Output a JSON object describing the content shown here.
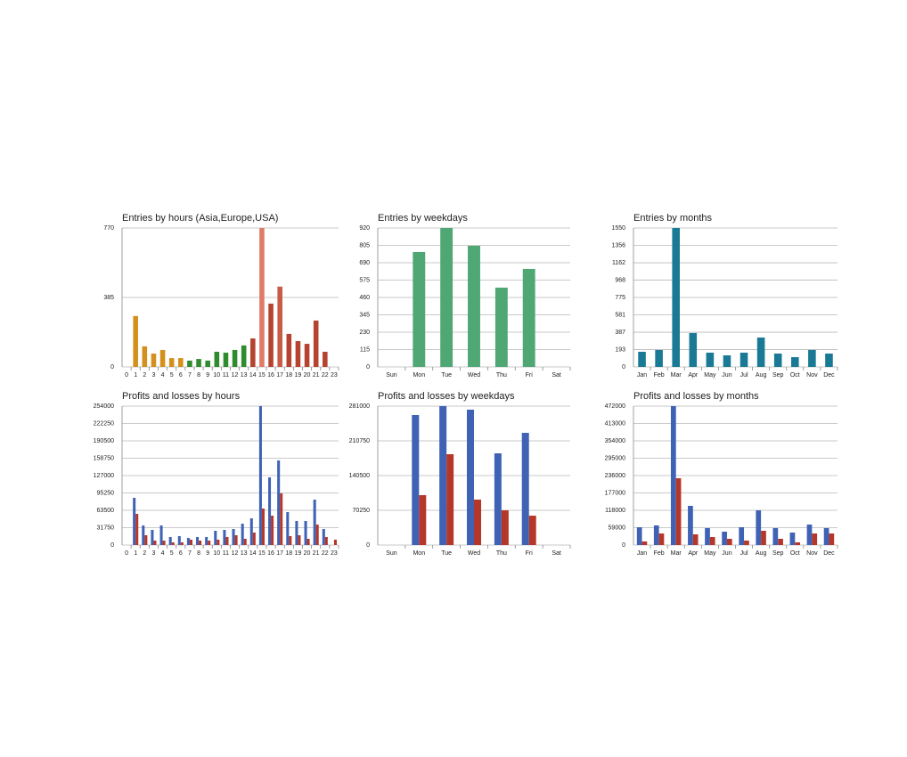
{
  "chart_data": [
    {
      "type": "bar",
      "title": "Entries by hours (Asia,Europe,USA)",
      "categories": [
        "0",
        "1",
        "2",
        "3",
        "4",
        "5",
        "6",
        "7",
        "8",
        "9",
        "10",
        "11",
        "12",
        "13",
        "14",
        "15",
        "16",
        "17",
        "18",
        "19",
        "20",
        "21",
        "22",
        "23"
      ],
      "values": [
        0,
        282,
        114,
        74,
        94,
        49,
        49,
        35,
        44,
        35,
        84,
        79,
        94,
        119,
        158,
        770,
        351,
        445,
        183,
        143,
        128,
        257,
        84,
        0
      ],
      "colors": [
        "#d4901c",
        "#d4901c",
        "#d4901c",
        "#d4901c",
        "#d4901c",
        "#d4901c",
        "#d4901c",
        "#2e8b2e",
        "#2e8b2e",
        "#2e8b2e",
        "#2e8b2e",
        "#2e8b2e",
        "#2e8b2e",
        "#2e8b2e",
        "#b5432f",
        "#e07a66",
        "#b5432f",
        "#c95a45",
        "#b5432f",
        "#b5432f",
        "#b5432f",
        "#b5432f",
        "#b5432f",
        "#b5432f"
      ],
      "ylim": [
        0,
        770
      ],
      "yticks": [
        0,
        385,
        770
      ],
      "grid": true
    },
    {
      "type": "bar",
      "title": "Entries by weekdays",
      "categories": [
        "Sun",
        "Mon",
        "Tue",
        "Wed",
        "Thu",
        "Fri",
        "Sat"
      ],
      "values": [
        0,
        761,
        920,
        802,
        525,
        649,
        0
      ],
      "color": "#4fa774",
      "ylim": [
        0,
        920
      ],
      "yticks": [
        0,
        115,
        230,
        345,
        460,
        575,
        690,
        805,
        920
      ],
      "grid": true
    },
    {
      "type": "bar",
      "title": "Entries by months",
      "categories": [
        "Jan",
        "Feb",
        "Mar",
        "Apr",
        "May",
        "Jun",
        "Jul",
        "Aug",
        "Sep",
        "Oct",
        "Nov",
        "Dec"
      ],
      "values": [
        169,
        189,
        1550,
        378,
        159,
        129,
        159,
        328,
        149,
        109,
        189,
        149
      ],
      "color": "#1a7a96",
      "ylim": [
        0,
        1550
      ],
      "yticks": [
        0,
        193,
        387,
        581,
        775,
        968,
        1162,
        1356,
        1550
      ],
      "grid": true
    },
    {
      "type": "bar",
      "title": "Profits and losses by hours",
      "categories": [
        "0",
        "1",
        "2",
        "3",
        "4",
        "5",
        "6",
        "7",
        "8",
        "9",
        "10",
        "11",
        "12",
        "13",
        "14",
        "15",
        "16",
        "17",
        "18",
        "19",
        "20",
        "21",
        "22",
        "23"
      ],
      "series": [
        {
          "color": "#3f62b5",
          "values": [
            0,
            86300,
            35800,
            27700,
            35800,
            14700,
            16300,
            13000,
            14700,
            14700,
            26000,
            27700,
            29300,
            39100,
            48800,
            254000,
            123700,
            154700,
            60200,
            44000,
            44000,
            83000,
            29300,
            0
          ]
        },
        {
          "color": "#b5372a",
          "values": [
            0,
            57000,
            17900,
            8100,
            8100,
            4900,
            4900,
            9800,
            8100,
            8100,
            9800,
            14700,
            17900,
            11400,
            22800,
            66700,
            53700,
            94400,
            16300,
            17900,
            11400,
            37400,
            14700,
            9800
          ]
        }
      ],
      "ylim": [
        0,
        254000
      ],
      "yticks": [
        0,
        31750,
        63500,
        95250,
        127000,
        158750,
        190500,
        222250,
        254000
      ],
      "grid": true
    },
    {
      "type": "bar",
      "title": "Profits and losses by weekdays",
      "categories": [
        "Sun",
        "Mon",
        "Tue",
        "Wed",
        "Thu",
        "Fri",
        "Sat"
      ],
      "series": [
        {
          "color": "#3f62b5",
          "values": [
            0,
            263000,
            281000,
            273800,
            185500,
            226900,
            0
          ]
        },
        {
          "color": "#b5372a",
          "values": [
            0,
            100900,
            183700,
            91900,
            70200,
            59400,
            0
          ]
        }
      ],
      "ylim": [
        0,
        281000
      ],
      "yticks": [
        0,
        70250,
        140500,
        210750,
        281000
      ],
      "grid": true
    },
    {
      "type": "bar",
      "title": "Profits and losses by months",
      "categories": [
        "Jan",
        "Feb",
        "Mar",
        "Apr",
        "May",
        "Jun",
        "Jul",
        "Aug",
        "Sep",
        "Oct",
        "Nov",
        "Dec"
      ],
      "series": [
        {
          "color": "#3f62b5",
          "values": [
            60500,
            66600,
            472000,
            133100,
            57500,
            45400,
            60500,
            118000,
            57500,
            42400,
            69600,
            57500
          ]
        },
        {
          "color": "#b5372a",
          "values": [
            12100,
            39300,
            227000,
            36300,
            27200,
            21200,
            15100,
            48400,
            21200,
            9100,
            39300,
            39300
          ]
        }
      ],
      "ylim": [
        0,
        472000
      ],
      "yticks": [
        0,
        59000,
        118000,
        177000,
        236000,
        295000,
        354000,
        413000,
        472000
      ],
      "grid": true
    }
  ]
}
